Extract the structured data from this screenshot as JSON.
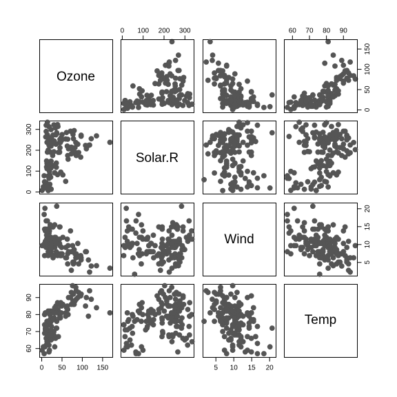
{
  "chart_data": {
    "type": "scatter",
    "subtype": "pairs-scatterplot-matrix",
    "variables": [
      "Ozone",
      "Solar.R",
      "Wind",
      "Temp"
    ],
    "point_color": "#555555",
    "axes": {
      "Ozone": {
        "range": [
          -6,
          174
        ],
        "ticks": [
          0,
          50,
          100,
          150
        ]
      },
      "Solar.R": {
        "range": [
          -8,
          342
        ],
        "ticks": [
          0,
          100,
          200,
          300
        ]
      },
      "Wind": {
        "range": [
          1.3,
          21.7
        ],
        "ticks": [
          5,
          10,
          15,
          20
        ]
      },
      "Temp": {
        "range": [
          55,
          98
        ],
        "ticks": [
          60,
          70,
          80,
          90
        ]
      }
    },
    "records": [
      [
        41,
        190,
        7.4,
        67
      ],
      [
        36,
        118,
        8.0,
        72
      ],
      [
        12,
        149,
        12.6,
        74
      ],
      [
        18,
        313,
        11.5,
        62
      ],
      [
        28,
        null,
        14.9,
        66
      ],
      [
        23,
        299,
        8.6,
        65
      ],
      [
        19,
        99,
        13.8,
        59
      ],
      [
        8,
        19,
        20.1,
        61
      ],
      [
        7,
        null,
        6.9,
        74
      ],
      [
        16,
        256,
        9.7,
        69
      ],
      [
        11,
        290,
        9.2,
        66
      ],
      [
        14,
        274,
        10.9,
        68
      ],
      [
        18,
        65,
        13.2,
        58
      ],
      [
        14,
        334,
        11.5,
        64
      ],
      [
        34,
        307,
        12.0,
        66
      ],
      [
        6,
        78,
        18.4,
        57
      ],
      [
        30,
        322,
        11.5,
        68
      ],
      [
        11,
        44,
        9.7,
        62
      ],
      [
        1,
        8,
        9.7,
        59
      ],
      [
        11,
        320,
        16.6,
        73
      ],
      [
        4,
        25,
        9.7,
        61
      ],
      [
        32,
        92,
        12.0,
        61
      ],
      [
        23,
        13,
        12.0,
        67
      ],
      [
        45,
        252,
        14.9,
        81
      ],
      [
        115,
        223,
        5.7,
        79
      ],
      [
        37,
        279,
        7.4,
        76
      ],
      [
        29,
        127,
        9.7,
        82
      ],
      [
        71,
        291,
        13.8,
        90
      ],
      [
        39,
        323,
        11.5,
        87
      ],
      [
        23,
        148,
        8.0,
        82
      ],
      [
        21,
        191,
        14.9,
        77
      ],
      [
        37,
        284,
        20.7,
        72
      ],
      [
        20,
        37,
        9.2,
        65
      ],
      [
        12,
        120,
        11.5,
        73
      ],
      [
        13,
        137,
        10.3,
        76
      ],
      [
        135,
        269,
        4.1,
        84
      ],
      [
        49,
        248,
        9.2,
        85
      ],
      [
        32,
        236,
        9.2,
        81
      ],
      [
        64,
        175,
        4.6,
        83
      ],
      [
        40,
        314,
        10.9,
        83
      ],
      [
        77,
        276,
        5.1,
        88
      ],
      [
        97,
        267,
        6.3,
        92
      ],
      [
        97,
        272,
        5.7,
        92
      ],
      [
        85,
        175,
        7.4,
        89
      ],
      [
        10,
        264,
        14.3,
        73
      ],
      [
        27,
        175,
        14.9,
        81
      ],
      [
        7,
        48,
        14.3,
        80
      ],
      [
        48,
        260,
        6.9,
        81
      ],
      [
        35,
        274,
        10.3,
        82
      ],
      [
        61,
        285,
        6.3,
        84
      ],
      [
        79,
        187,
        5.1,
        87
      ],
      [
        63,
        220,
        11.5,
        85
      ],
      [
        16,
        7,
        6.9,
        74
      ],
      [
        80,
        294,
        8.6,
        86
      ],
      [
        108,
        223,
        8.0,
        85
      ],
      [
        20,
        81,
        8.6,
        82
      ],
      [
        52,
        82,
        12.0,
        86
      ],
      [
        82,
        213,
        7.4,
        88
      ],
      [
        50,
        275,
        7.4,
        86
      ],
      [
        64,
        253,
        7.4,
        83
      ],
      [
        59,
        254,
        9.2,
        81
      ],
      [
        39,
        83,
        6.9,
        81
      ],
      [
        9,
        24,
        13.8,
        81
      ],
      [
        16,
        77,
        7.4,
        82
      ],
      [
        78,
        255,
        4.6,
        86
      ],
      [
        35,
        229,
        10.3,
        85
      ],
      [
        66,
        207,
        8.0,
        90
      ],
      [
        122,
        255,
        4.0,
        89
      ],
      [
        89,
        229,
        10.3,
        90
      ],
      [
        110,
        207,
        8.0,
        90
      ],
      [
        44,
        192,
        11.5,
        86
      ],
      [
        28,
        273,
        11.5,
        82
      ],
      [
        65,
        157,
        9.7,
        80
      ],
      [
        22,
        71,
        10.3,
        77
      ],
      [
        59,
        51,
        6.3,
        79
      ],
      [
        23,
        115,
        7.4,
        76
      ],
      [
        31,
        244,
        10.9,
        78
      ],
      [
        44,
        190,
        10.3,
        78
      ],
      [
        21,
        259,
        15.5,
        77
      ],
      [
        9,
        36,
        14.3,
        72
      ],
      [
        45,
        212,
        9.7,
        79
      ],
      [
        168,
        238,
        3.4,
        81
      ],
      [
        73,
        215,
        8.0,
        86
      ],
      [
        76,
        203,
        9.7,
        97
      ],
      [
        118,
        225,
        2.3,
        94
      ],
      [
        84,
        237,
        6.3,
        96
      ],
      [
        85,
        188,
        6.3,
        94
      ],
      [
        96,
        167,
        6.9,
        91
      ],
      [
        78,
        197,
        5.1,
        92
      ],
      [
        73,
        183,
        2.8,
        93
      ],
      [
        91,
        189,
        4.6,
        93
      ],
      [
        47,
        95,
        7.4,
        87
      ],
      [
        32,
        92,
        15.5,
        84
      ],
      [
        20,
        252,
        10.9,
        80
      ],
      [
        23,
        220,
        10.3,
        78
      ],
      [
        21,
        230,
        10.9,
        75
      ],
      [
        24,
        259,
        9.7,
        73
      ],
      [
        44,
        236,
        14.9,
        81
      ],
      [
        21,
        259,
        15.5,
        76
      ],
      [
        28,
        238,
        6.3,
        77
      ],
      [
        9,
        24,
        10.9,
        71
      ],
      [
        13,
        112,
        11.5,
        71
      ],
      [
        46,
        237,
        6.9,
        78
      ],
      [
        18,
        224,
        13.8,
        67
      ],
      [
        13,
        27,
        10.3,
        76
      ],
      [
        24,
        238,
        10.3,
        68
      ],
      [
        16,
        201,
        8.0,
        82
      ],
      [
        13,
        238,
        12.6,
        64
      ],
      [
        23,
        14,
        9.2,
        71
      ],
      [
        36,
        139,
        10.3,
        81
      ],
      [
        7,
        49,
        10.3,
        69
      ],
      [
        14,
        20,
        16.6,
        63
      ],
      [
        30,
        193,
        6.9,
        70
      ],
      [
        14,
        191,
        14.3,
        75
      ],
      [
        18,
        131,
        8.0,
        76
      ],
      [
        20,
        223,
        11.5,
        68
      ],
      [
        null,
        286,
        8.6,
        78
      ],
      [
        null,
        287,
        9.7,
        74
      ],
      [
        null,
        242,
        16.1,
        67
      ],
      [
        null,
        186,
        9.2,
        84
      ],
      [
        null,
        220,
        8.6,
        85
      ],
      [
        null,
        264,
        14.3,
        79
      ],
      [
        null,
        127,
        9.7,
        82
      ],
      [
        null,
        273,
        6.9,
        87
      ],
      [
        null,
        291,
        14.9,
        91
      ],
      [
        null,
        323,
        11.5,
        79
      ],
      [
        null,
        259,
        10.9,
        93
      ],
      [
        null,
        250,
        9.2,
        92
      ],
      [
        null,
        332,
        13.8,
        80
      ],
      [
        null,
        322,
        12.6,
        79
      ],
      [
        null,
        150,
        6.3,
        77
      ],
      [
        null,
        59,
        1.7,
        76
      ],
      [
        null,
        91,
        4.6,
        76
      ],
      [
        null,
        250,
        6.3,
        76
      ],
      [
        null,
        135,
        8.0,
        75
      ],
      [
        null,
        127,
        8.0,
        78
      ],
      [
        null,
        47,
        10.3,
        73
      ],
      [
        null,
        98,
        11.5,
        80
      ],
      [
        null,
        31,
        14.9,
        77
      ],
      [
        null,
        138,
        8.0,
        83
      ],
      [
        null,
        66,
        16.6,
        57
      ],
      [
        null,
        122,
        12.0,
        80
      ],
      [
        null,
        194,
        8.6,
        69
      ],
      [
        null,
        266,
        14.9,
        58
      ],
      [
        null,
        8,
        9.7,
        74
      ],
      [
        null,
        null,
        8.0,
        57
      ],
      [
        null,
        null,
        12.0,
        64
      ],
      [
        null,
        null,
        12.0,
        75
      ],
      [
        null,
        null,
        7.4,
        59
      ],
      [
        null,
        null,
        5.7,
        81
      ]
    ]
  }
}
